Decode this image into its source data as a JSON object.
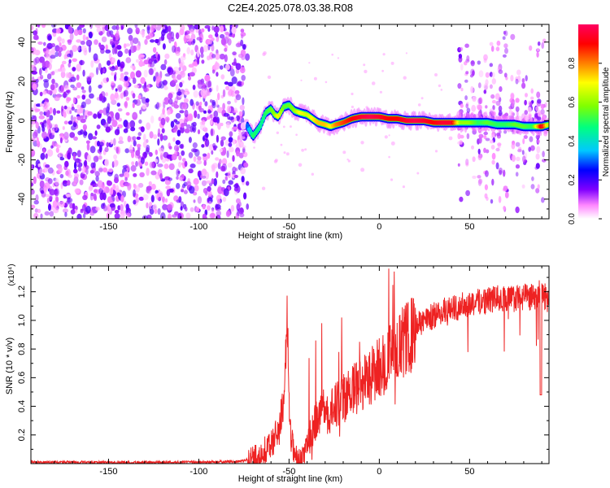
{
  "title": "C2E4.2025.078.03.38.R08",
  "chart_data": [
    {
      "type": "heatmap",
      "xlabel": "Height of straight line (km)",
      "ylabel": "Frequency (Hz)",
      "xlim": [
        -193,
        94
      ],
      "ylim": [
        -50,
        49
      ],
      "xticks": [
        -150,
        -100,
        -50,
        0,
        50
      ],
      "yticks": [
        -40,
        -20,
        0,
        20,
        40
      ],
      "colorbar": {
        "label": "Normalized spectral amplitude",
        "range": [
          0,
          1
        ],
        "ticks": [
          0.0,
          0.2,
          0.4,
          0.6,
          0.8
        ],
        "colors": [
          "#ffffff",
          "#ff88ff",
          "#8000ff",
          "#0000ff",
          "#00c8ff",
          "#00ff80",
          "#80ff00",
          "#ffff00",
          "#ff8000",
          "#ff0000",
          "#ff0060"
        ]
      },
      "noise_region_x": [
        -193,
        -73
      ],
      "sparse_region_x": [
        44,
        94
      ],
      "ridge": {
        "x": [
          -73,
          -70,
          -66,
          -63,
          -60,
          -58,
          -56,
          -53,
          -50,
          -47,
          -44,
          -40,
          -37,
          -34,
          -30,
          -27,
          -24,
          -20,
          -15,
          -10,
          -5,
          0,
          5,
          10,
          15,
          20,
          25,
          30,
          35,
          40,
          45,
          50,
          55,
          60,
          65,
          70,
          75,
          80,
          85,
          90,
          94
        ],
        "y": [
          -3,
          -8,
          -3,
          4,
          6,
          3,
          2,
          7,
          8,
          5,
          4,
          3,
          1,
          -1,
          -2,
          -3,
          -2,
          -1,
          1,
          2,
          2,
          2,
          1,
          1,
          0,
          0,
          0,
          -1,
          -1,
          -1,
          -1,
          -1,
          -1,
          -1,
          -2,
          -2,
          -2,
          -3,
          -3,
          -3,
          -2
        ],
        "amplitude": [
          0.3,
          0.5,
          0.45,
          0.5,
          0.55,
          0.6,
          0.7,
          0.55,
          0.55,
          0.6,
          0.7,
          0.65,
          0.7,
          0.75,
          0.75,
          0.7,
          0.8,
          0.85,
          0.9,
          0.95,
          0.98,
          0.95,
          0.9,
          0.9,
          0.95,
          0.98,
          0.95,
          0.9,
          0.95,
          0.95,
          0.6,
          0.6,
          0.5,
          0.55,
          0.5,
          0.5,
          0.55,
          0.55,
          0.5,
          0.95,
          0.6
        ]
      }
    },
    {
      "type": "line",
      "xlabel": "Height of straight line (km)",
      "ylabel": "SNR (10 * v/v)",
      "y_multiplier": "(x10⁴)",
      "xlim": [
        -193,
        94
      ],
      "ylim": [
        0,
        1.38
      ],
      "xticks": [
        -150,
        -100,
        -50,
        0,
        50
      ],
      "yticks": [
        0.2,
        0.4,
        0.6,
        0.8,
        1.0,
        1.2
      ],
      "line_color": "#ee2222",
      "series": [
        {
          "x": [
            -193,
            -170,
            -150,
            -120,
            -100,
            -85,
            -75,
            -70,
            -65,
            -60,
            -57,
            -55,
            -53,
            -52,
            -51,
            -50,
            -49,
            -47,
            -45,
            -43,
            -41,
            -39,
            -37,
            -35,
            -33,
            -31,
            -29,
            -27,
            -25,
            -23,
            -20,
            -17,
            -14,
            -10,
            -5,
            0,
            5,
            10,
            15,
            20,
            25,
            30,
            35,
            40,
            45,
            50,
            55,
            60,
            65,
            70,
            75,
            80,
            85,
            88,
            90,
            92,
            94
          ],
          "y": [
            0.01,
            0.012,
            0.01,
            0.011,
            0.012,
            0.015,
            0.02,
            0.05,
            0.09,
            0.15,
            0.22,
            0.3,
            0.5,
            0.9,
            1.02,
            0.4,
            0.2,
            0.08,
            0.04,
            0.06,
            0.1,
            0.18,
            0.26,
            0.32,
            0.38,
            0.42,
            0.4,
            0.36,
            0.45,
            0.45,
            0.48,
            0.52,
            0.55,
            0.6,
            0.65,
            0.72,
            0.78,
            0.85,
            0.92,
            0.97,
            1.02,
            1.05,
            1.08,
            1.1,
            1.12,
            1.14,
            1.15,
            1.16,
            1.17,
            1.17,
            1.17,
            1.18,
            1.18,
            1.2,
            1.22,
            1.18,
            1.16
          ]
        }
      ]
    }
  ]
}
